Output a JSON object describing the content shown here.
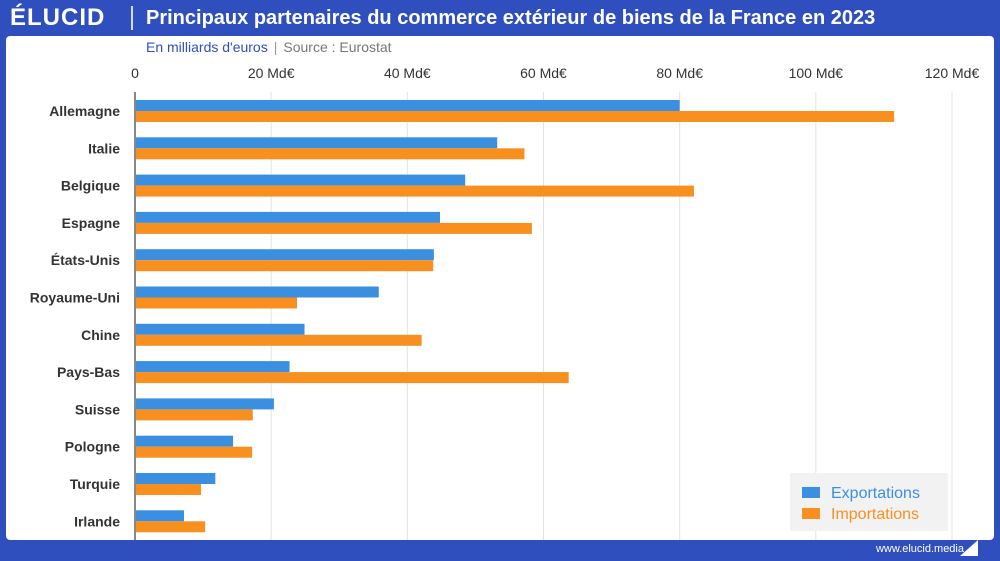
{
  "brand": {
    "logo": "ÉLUCID",
    "url": "www.elucid.media"
  },
  "header": {
    "title": "Principaux partenaires du commerce extérieur de biens de la France en 2023"
  },
  "subtitle": {
    "unit": "En milliards d'euros",
    "separator": "|",
    "source": "Source : Eurostat"
  },
  "colors": {
    "exports": "#3a8fe0",
    "imports": "#f7901e",
    "brand": "#2f4fbf"
  },
  "chart_data": {
    "type": "bar",
    "orientation": "horizontal",
    "categories": [
      "Allemagne",
      "Italie",
      "Belgique",
      "Espagne",
      "États-Unis",
      "Royaume-Uni",
      "Chine",
      "Pays-Bas",
      "Suisse",
      "Pologne",
      "Turquie",
      "Irlande"
    ],
    "series": [
      {
        "name": "Exportations",
        "values": [
          80.0,
          53.2,
          48.5,
          44.8,
          43.9,
          35.8,
          24.9,
          22.7,
          20.4,
          14.4,
          11.8,
          7.2
        ]
      },
      {
        "name": "Importations",
        "values": [
          111.5,
          57.2,
          82.1,
          58.3,
          43.8,
          23.8,
          42.1,
          63.7,
          17.3,
          17.2,
          9.7,
          10.3
        ]
      }
    ],
    "xlim": [
      0,
      120
    ],
    "x_ticks": [
      0,
      20,
      40,
      60,
      80,
      100,
      120
    ],
    "x_tick_labels": [
      "0",
      "20 Md€",
      "40 Md€",
      "60 Md€",
      "80 Md€",
      "100 Md€",
      "120 Md€"
    ],
    "grid": true,
    "legend_position": "bottom-right"
  }
}
